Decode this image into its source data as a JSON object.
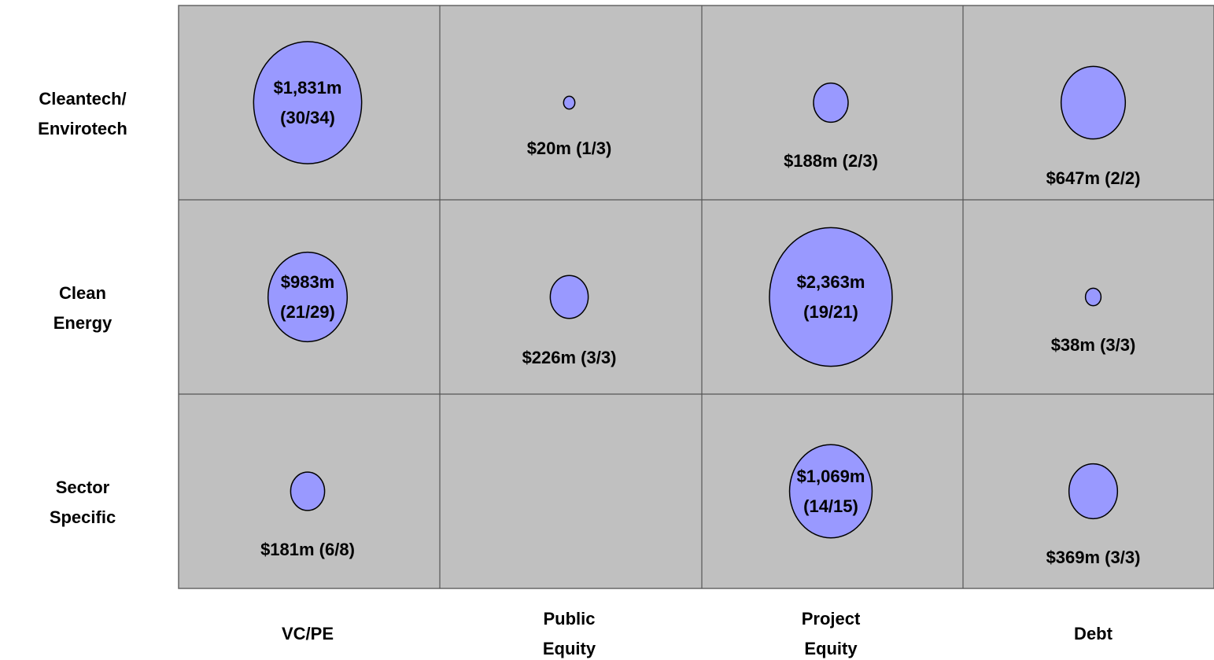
{
  "chart_data": {
    "type": "bubble",
    "categories": [
      "VC/PE",
      "Public Equity",
      "Project Equity",
      "Debt"
    ],
    "color": "#9999ff",
    "background": "#c0c0c0",
    "series": [
      {
        "name": "Cleantech/ Envirotech",
        "values": [
          1831,
          20,
          188,
          647
        ],
        "value_labels": [
          "$1,831m (30/34)",
          "$20m (1/3)",
          "$188m (2/3)",
          "$647m (2/2)"
        ]
      },
      {
        "name": "Clean Energy",
        "values": [
          983,
          226,
          2363,
          38
        ],
        "value_labels": [
          "$983m (21/29)",
          "$226m (3/3)",
          "$2,363m (19/21)",
          "$38m (3/3)"
        ]
      },
      {
        "name": "Sector Specific",
        "values": [
          181,
          null,
          1069,
          369
        ],
        "value_labels": [
          "$181m (6/8)",
          null,
          "$1,069m (14/15)",
          "$369m (3/3)"
        ]
      }
    ]
  }
}
